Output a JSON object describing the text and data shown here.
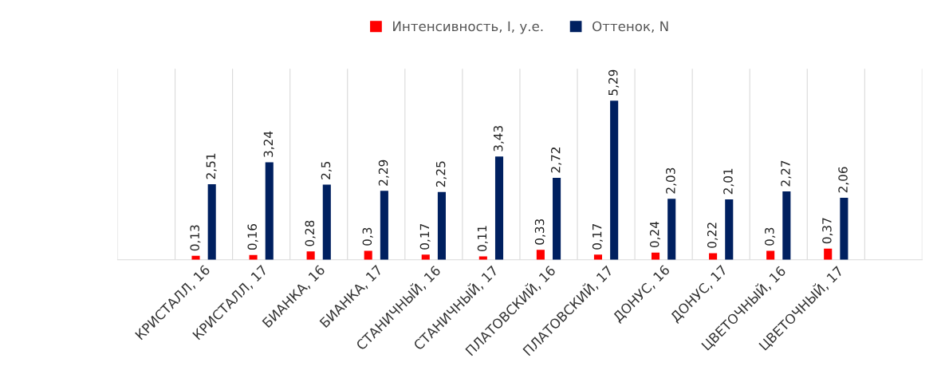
{
  "chart_data": {
    "type": "bar",
    "categories": [
      "КРИСТАЛЛ, 16",
      "КРИСТАЛЛ, 17",
      "БИАНКА, 16",
      "БИАНКА, 17",
      "СТАНИЧНЫЙ, 16",
      "СТАНИЧНЫЙ, 17",
      "ПЛАТОВСКИЙ, 16",
      "ПЛАТОВСКИЙ, 17",
      "ДОНУС, 16",
      "ДОНУС, 17",
      "ЦВЕТОЧНЫЙ, 16",
      "ЦВЕТОЧНЫЙ, 17"
    ],
    "series": [
      {
        "name": "Интенсивность, I, у.е.",
        "color": "#ff0000",
        "values": [
          0.13,
          0.16,
          0.28,
          0.3,
          0.17,
          0.11,
          0.33,
          0.17,
          0.24,
          0.22,
          0.3,
          0.37
        ],
        "value_labels": [
          "0,13",
          "0,16",
          "0,28",
          "0,3",
          "0,17",
          "0,11",
          "0,33",
          "0,17",
          "0,24",
          "0,22",
          "0,3",
          "0,37"
        ]
      },
      {
        "name": "Оттенок, N",
        "color": "#002060",
        "values": [
          2.51,
          3.24,
          2.5,
          2.29,
          2.25,
          3.43,
          2.72,
          5.29,
          2.03,
          2.01,
          2.27,
          2.06
        ],
        "value_labels": [
          "2,51",
          "3,24",
          "2,5",
          "2,29",
          "2,25",
          "3,43",
          "2,72",
          "5,29",
          "2,03",
          "2,01",
          "2,27",
          "2,06"
        ]
      }
    ],
    "grid": "x",
    "legend": "top"
  }
}
